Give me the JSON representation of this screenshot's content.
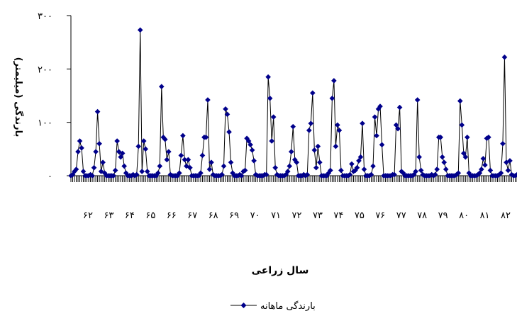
{
  "chart_data": {
    "type": "line",
    "title": "",
    "xlabel": "سال زراعی",
    "ylabel": "بارندگی (میلیمتر)",
    "ylim": [
      0,
      300
    ],
    "y_ticks": [
      "۰",
      "۱۰۰",
      "۲۰۰",
      "۳۰۰"
    ],
    "y_tick_values": [
      0,
      100,
      200,
      300
    ],
    "x_tick_labels": [
      "۶۲",
      "۶۳",
      "۶۴",
      "۶۵",
      "۶۶",
      "۶۷",
      "۶۸",
      "۶۹",
      "۷۰",
      "۷۱",
      "۷۲",
      "۷۳",
      "۷۴",
      "۷۵",
      "۷۶",
      "۷۷",
      "۷۸",
      "۷۹",
      "۸۰",
      "۸۱",
      "۸۲"
    ],
    "months_per_year": 12,
    "grid": false,
    "legend_position": "bottom-center",
    "colors": {
      "series": "#00008b",
      "line": "#000000",
      "axis": "#000000"
    },
    "series": [
      {
        "name": "بارندگی ماهانه",
        "values": [
          0,
          2,
          8,
          12,
          45,
          65,
          52,
          8,
          0,
          0,
          0,
          2,
          0,
          15,
          45,
          120,
          60,
          8,
          25,
          5,
          0,
          0,
          0,
          0,
          0,
          10,
          65,
          45,
          35,
          42,
          18,
          5,
          0,
          0,
          0,
          2,
          0,
          2,
          55,
          273,
          8,
          65,
          50,
          8,
          0,
          0,
          0,
          0,
          0,
          5,
          18,
          167,
          72,
          68,
          30,
          45,
          2,
          0,
          0,
          0,
          0,
          5,
          38,
          75,
          30,
          18,
          30,
          15,
          0,
          0,
          0,
          0,
          0,
          5,
          38,
          72,
          72,
          142,
          12,
          25,
          2,
          0,
          0,
          0,
          0,
          2,
          18,
          125,
          115,
          82,
          25,
          5,
          0,
          0,
          0,
          2,
          0,
          8,
          10,
          70,
          65,
          58,
          48,
          28,
          2,
          0,
          0,
          0,
          0,
          2,
          2,
          185,
          145,
          65,
          110,
          15,
          2,
          0,
          0,
          0,
          0,
          2,
          8,
          18,
          45,
          92,
          30,
          25,
          0,
          0,
          0,
          2,
          0,
          2,
          85,
          98,
          155,
          48,
          15,
          55,
          25,
          0,
          0,
          0,
          0,
          5,
          10,
          145,
          178,
          55,
          95,
          85,
          10,
          0,
          0,
          0,
          0,
          2,
          22,
          8,
          10,
          15,
          28,
          35,
          98,
          12,
          0,
          0,
          0,
          2,
          18,
          110,
          75,
          125,
          130,
          58,
          0,
          0,
          0,
          0,
          0,
          2,
          2,
          95,
          88,
          128,
          8,
          5,
          0,
          0,
          0,
          0,
          0,
          2,
          8,
          142,
          35,
          10,
          2,
          0,
          0,
          0,
          0,
          2,
          0,
          2,
          12,
          72,
          72,
          35,
          25,
          12,
          0,
          0,
          0,
          0,
          0,
          2,
          5,
          140,
          95,
          42,
          35,
          72,
          5,
          0,
          0,
          0,
          0,
          2,
          5,
          12,
          32,
          20,
          70,
          72,
          10,
          0,
          0,
          0,
          0,
          2,
          5,
          60,
          222,
          25,
          10,
          28,
          2,
          0,
          0,
          2
        ]
      }
    ]
  }
}
